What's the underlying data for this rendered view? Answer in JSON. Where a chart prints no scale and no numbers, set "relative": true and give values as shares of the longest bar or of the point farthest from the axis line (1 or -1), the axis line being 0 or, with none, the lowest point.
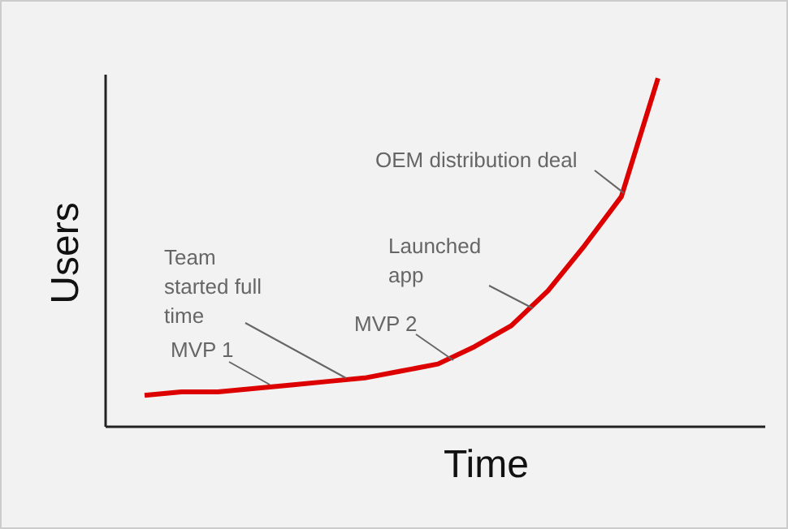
{
  "chart_data": {
    "type": "line",
    "relative": true,
    "xlabel": "Time",
    "ylabel": "Users",
    "categories": [
      null,
      null,
      null,
      null,
      null,
      null,
      null,
      null,
      null,
      null,
      null,
      null,
      null,
      null,
      null
    ],
    "series": [
      {
        "color": "#dd0000",
        "values": [
          0.09,
          0.1,
          0.1,
          0.11,
          0.12,
          0.13,
          0.14,
          0.16,
          0.18,
          0.23,
          0.29,
          0.39,
          0.52,
          0.66,
          1
        ]
      }
    ],
    "annotations": [
      "MVP 1",
      "Team started full time",
      "MVP 2",
      "Launched app",
      "OEM distribution deal"
    ],
    "marker": "none",
    "grid": false,
    "legend": false
  }
}
